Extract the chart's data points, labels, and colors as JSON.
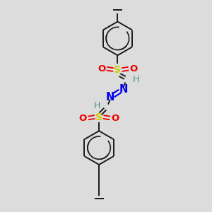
{
  "bg_color": "#dcdcdc",
  "bond_color": "#1a1a1a",
  "N_color": "#0000ee",
  "O_color": "#ee0000",
  "S_color": "#cccc00",
  "H_color": "#4a9090",
  "C_color": "#1a1a1a",
  "figsize": [
    3.0,
    3.0
  ],
  "dpi": 100,
  "xlim": [
    0,
    10
  ],
  "ylim": [
    0,
    10
  ]
}
